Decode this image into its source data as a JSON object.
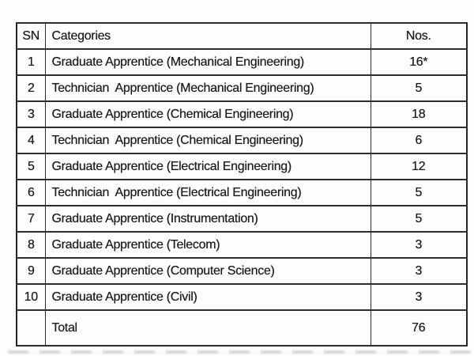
{
  "table": {
    "headers": {
      "sn": "SN",
      "categories": "Categories",
      "nos": "Nos."
    },
    "rows": [
      {
        "sn": "1",
        "category": "Graduate Apprentice (Mechanical Engineering)",
        "nos": "16*"
      },
      {
        "sn": "2",
        "category": "Technician  Apprentice (Mechanical Engineering)",
        "nos": "5"
      },
      {
        "sn": "3",
        "category": "Graduate Apprentice (Chemical Engineering)",
        "nos": "18"
      },
      {
        "sn": "4",
        "category": "Technician  Apprentice (Chemical Engineering)",
        "nos": "6"
      },
      {
        "sn": "5",
        "category": "Graduate Apprentice (Electrical Engineering)",
        "nos": "12"
      },
      {
        "sn": "6",
        "category": "Technician  Apprentice (Electrical Engineering)",
        "nos": "5"
      },
      {
        "sn": "7",
        "category": "Graduate Apprentice (Instrumentation)",
        "nos": "5"
      },
      {
        "sn": "8",
        "category": "Graduate Apprentice (Telecom)",
        "nos": "3"
      },
      {
        "sn": "9",
        "category": "Graduate Apprentice (Computer Science)",
        "nos": "3"
      },
      {
        "sn": "10",
        "category": "Graduate Apprentice (Civil)",
        "nos": "3"
      }
    ],
    "total": {
      "sn": "",
      "label": "Total",
      "nos": "76"
    }
  },
  "colors": {
    "background": "#fdfdfd",
    "border": "#2e2e2e",
    "text": "#1c1c1c"
  }
}
